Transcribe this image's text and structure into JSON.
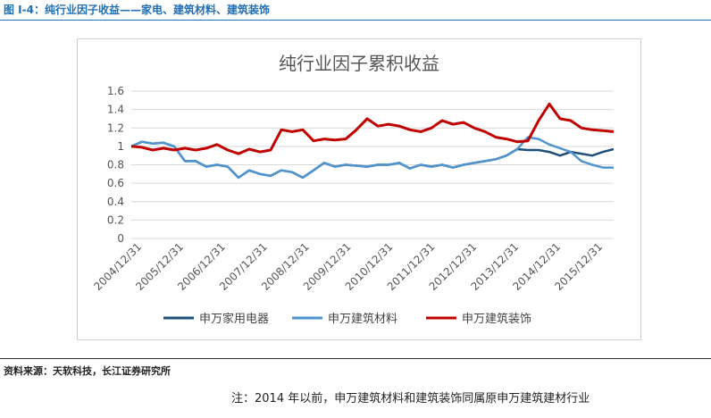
{
  "figure": {
    "title": "图 I-4：纯行业因子收益——家电、建筑材料、建筑装饰"
  },
  "footer": {
    "source": "资料来源：天软科技，长江证券研究所",
    "note": "注：2014 年以前，申万建筑材料和建筑装饰同属原申万建筑建材行业"
  },
  "chart_data": {
    "type": "line",
    "title": "纯行业因子累积收益",
    "xlabel": "",
    "ylabel": "",
    "ylim": [
      0,
      1.6
    ],
    "yticks": [
      "1.6",
      "1.4",
      "1.2",
      "1",
      "0.8",
      "0.6",
      "0.4",
      "0.2",
      "0"
    ],
    "x_tick_labels": [
      "2004/12/31",
      "2005/12/31",
      "2006/12/31",
      "2007/12/31",
      "2008/12/31",
      "2009/12/31",
      "2010/12/31",
      "2011/12/31",
      "2012/12/31",
      "2013/12/31",
      "2014/12/31",
      "2015/12/31"
    ],
    "grid": "horizontal",
    "legend_position": "bottom",
    "x": [
      "2004-12",
      "2005-03",
      "2005-06",
      "2005-09",
      "2005-12",
      "2006-03",
      "2006-06",
      "2006-09",
      "2006-12",
      "2007-03",
      "2007-06",
      "2007-09",
      "2007-12",
      "2008-03",
      "2008-06",
      "2008-09",
      "2008-12",
      "2009-03",
      "2009-06",
      "2009-09",
      "2009-12",
      "2010-03",
      "2010-06",
      "2010-09",
      "2010-12",
      "2011-03",
      "2011-06",
      "2011-09",
      "2011-12",
      "2012-03",
      "2012-06",
      "2012-09",
      "2012-12",
      "2013-03",
      "2013-06",
      "2013-09",
      "2013-12",
      "2014-03",
      "2014-06",
      "2014-09",
      "2014-12",
      "2015-03",
      "2015-06",
      "2015-09",
      "2015-12",
      "2016-03"
    ],
    "series": [
      {
        "name": "申万家用电器",
        "color": "#1f4e79",
        "values": [
          1.0,
          1.05,
          1.03,
          1.04,
          1.0,
          0.84,
          0.84,
          0.78,
          0.8,
          0.78,
          0.66,
          0.74,
          0.7,
          0.68,
          0.74,
          0.72,
          0.66,
          0.74,
          0.82,
          0.78,
          0.8,
          0.79,
          0.78,
          0.8,
          0.8,
          0.82,
          0.76,
          0.8,
          0.78,
          0.8,
          0.77,
          0.8,
          0.82,
          0.84,
          0.86,
          0.9,
          0.97,
          0.96,
          0.96,
          0.94,
          0.9,
          0.94,
          0.92,
          0.9,
          0.94,
          0.97
        ]
      },
      {
        "name": "申万建筑材料",
        "color": "#4f94cd",
        "values": [
          1.0,
          1.05,
          1.03,
          1.04,
          1.0,
          0.84,
          0.84,
          0.78,
          0.8,
          0.78,
          0.66,
          0.74,
          0.7,
          0.68,
          0.74,
          0.72,
          0.66,
          0.74,
          0.82,
          0.78,
          0.8,
          0.79,
          0.78,
          0.8,
          0.8,
          0.82,
          0.76,
          0.8,
          0.78,
          0.8,
          0.77,
          0.8,
          0.82,
          0.84,
          0.86,
          0.9,
          0.97,
          1.1,
          1.08,
          1.02,
          0.98,
          0.94,
          0.84,
          0.8,
          0.77,
          0.77
        ]
      },
      {
        "name": "申万建筑装饰",
        "color": "#c00000",
        "values": [
          1.0,
          0.99,
          0.96,
          0.98,
          0.96,
          0.98,
          0.96,
          0.98,
          1.02,
          0.96,
          0.92,
          0.97,
          0.94,
          0.96,
          1.18,
          1.16,
          1.18,
          1.06,
          1.08,
          1.07,
          1.08,
          1.18,
          1.3,
          1.22,
          1.24,
          1.22,
          1.18,
          1.16,
          1.2,
          1.28,
          1.24,
          1.26,
          1.2,
          1.16,
          1.1,
          1.08,
          1.05,
          1.06,
          1.28,
          1.46,
          1.3,
          1.28,
          1.2,
          1.18,
          1.17,
          1.16
        ]
      }
    ]
  }
}
